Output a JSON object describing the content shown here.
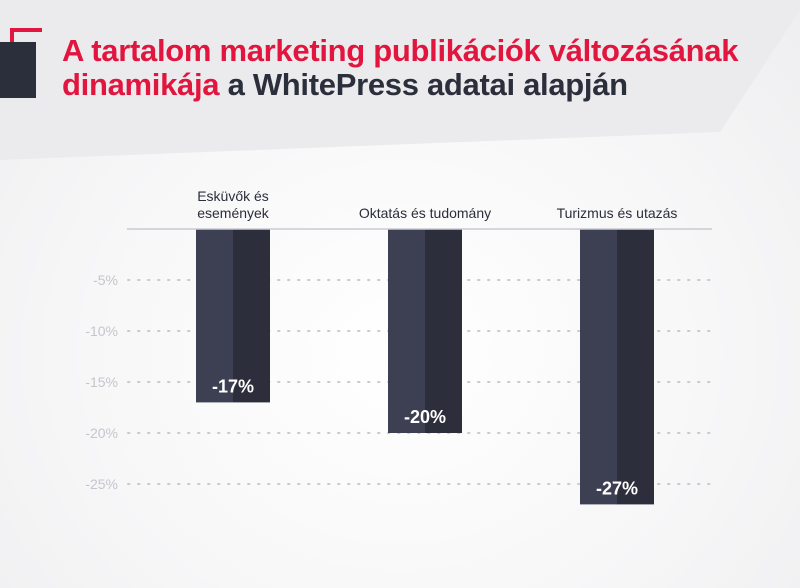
{
  "header": {
    "title_accent_1": "A tartalom marketing publikációk változásának",
    "title_accent_2": "dinamikája",
    "title_dark": " a WhitePress adatai alapján"
  },
  "colors": {
    "accent": "#e2153f",
    "dark": "#2b2e3b",
    "bar_left": "#3d4052",
    "bar_right": "#2c2e3b",
    "grid": "#c9cbd1",
    "tick": "#c4c6cd"
  },
  "chart_data": {
    "type": "bar",
    "categories": [
      [
        "Esküvők és",
        "események"
      ],
      [
        "Oktatás és tudomány"
      ],
      [
        "Turizmus és utazás"
      ]
    ],
    "values": [
      -17,
      -20,
      -27
    ],
    "value_labels": [
      "-17%",
      "-20%",
      "-27%"
    ],
    "yticks": [
      -5,
      -10,
      -15,
      -20,
      -25
    ],
    "ytick_labels": [
      "-5%",
      "-10%",
      "-15%",
      "-20%",
      "-25%"
    ],
    "ylim": [
      -27,
      0
    ],
    "grid": true,
    "title": "A tartalom marketing publikációk változásának dinamikája a WhitePress adatai alapján",
    "xlabel": "",
    "ylabel": ""
  }
}
